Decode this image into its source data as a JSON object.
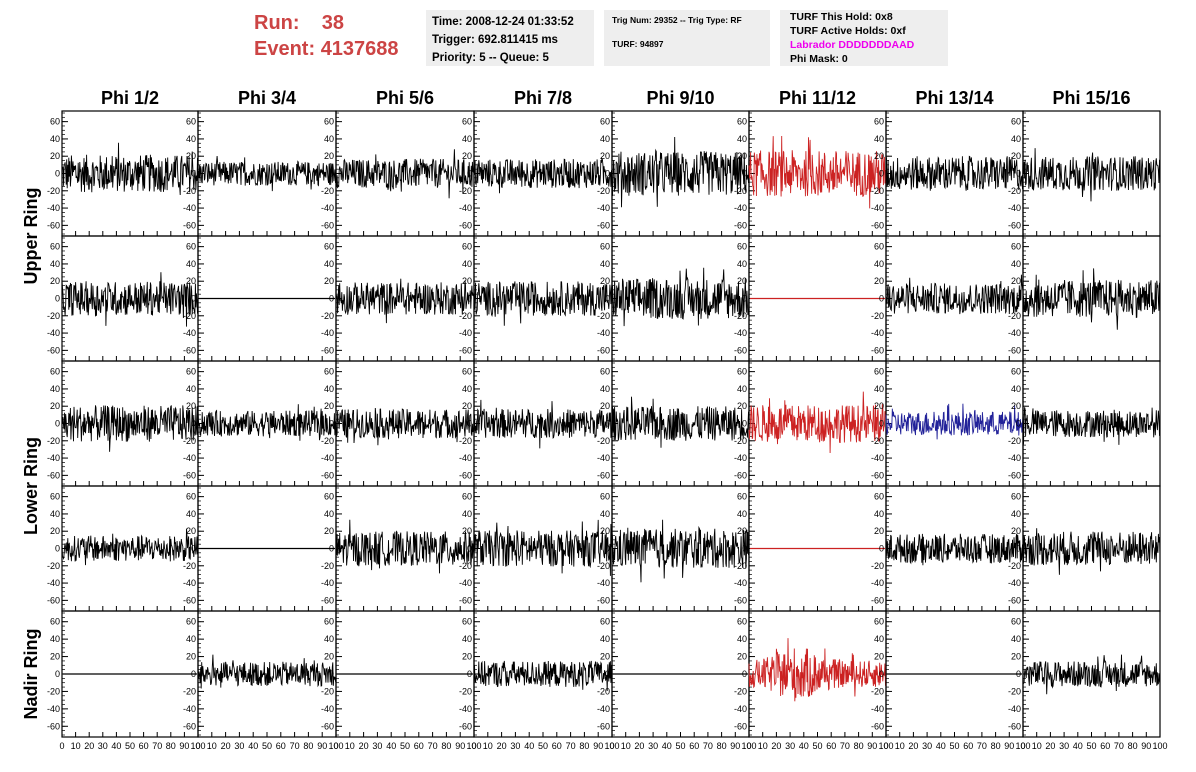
{
  "header": {
    "run_label": "Run:",
    "run_value": "38",
    "event_label": "Event:",
    "event_value": "4137688",
    "time": "Time: 2008-12-24 01:33:52",
    "trigger": "Trigger: 692.811415 ms",
    "priority": "Priority: 5 -- Queue: 5",
    "trig_num": "Trig Num: 29352 -- Trig Type: RF",
    "turf": "TURF: 94897",
    "turf_this_hold": "TURF This Hold: 0x8",
    "turf_active_holds": "TURF Active Holds: 0xf",
    "labrador": "Labrador DDDDDDDAAD",
    "phi_mask": "Phi Mask: 0"
  },
  "colors": {
    "run_text": "#cc4444",
    "labrador_text": "#ee00ee",
    "normal": "#000000",
    "red": "#cc2222",
    "blue": "#222299",
    "info_bg": "#eeeeee"
  },
  "chart_data": {
    "type": "line",
    "columns": [
      "Phi 1/2",
      "Phi 3/4",
      "Phi 5/6",
      "Phi 7/8",
      "Phi 9/10",
      "Phi 11/12",
      "Phi 13/14",
      "Phi 15/16"
    ],
    "ring_labels": [
      "Upper Ring",
      "Lower Ring",
      "Nadir Ring"
    ],
    "y_ticks": [
      60,
      40,
      20,
      0,
      -20,
      -40,
      -60
    ],
    "ylim": [
      -70,
      70
    ],
    "x_tick_labels": [
      "0",
      "10",
      "20",
      "30",
      "40",
      "50",
      "60",
      "70",
      "80",
      "90",
      "100"
    ],
    "xlim": [
      0,
      100
    ],
    "panels": [
      [
        {
          "state": "active",
          "color": "normal",
          "amp": 22
        },
        {
          "state": "active",
          "color": "normal",
          "amp": 14
        },
        {
          "state": "active",
          "color": "normal",
          "amp": 17
        },
        {
          "state": "active",
          "color": "normal",
          "amp": 17
        },
        {
          "state": "active",
          "color": "normal",
          "amp": 26
        },
        {
          "state": "active",
          "color": "red",
          "amp": 27
        },
        {
          "state": "active",
          "color": "normal",
          "amp": 20
        },
        {
          "state": "active",
          "color": "normal",
          "amp": 20
        }
      ],
      [
        {
          "state": "active",
          "color": "normal",
          "amp": 20
        },
        {
          "state": "flat",
          "color": "normal",
          "amp": 0
        },
        {
          "state": "active",
          "color": "normal",
          "amp": 19
        },
        {
          "state": "active",
          "color": "normal",
          "amp": 20
        },
        {
          "state": "active",
          "color": "normal",
          "amp": 24
        },
        {
          "state": "flat",
          "color": "red",
          "amp": 0
        },
        {
          "state": "active",
          "color": "normal",
          "amp": 18
        },
        {
          "state": "active",
          "color": "normal",
          "amp": 22
        }
      ],
      [
        {
          "state": "active",
          "color": "normal",
          "amp": 21
        },
        {
          "state": "active",
          "color": "normal",
          "amp": 15
        },
        {
          "state": "active",
          "color": "normal",
          "amp": 17
        },
        {
          "state": "active",
          "color": "normal",
          "amp": 17
        },
        {
          "state": "active",
          "color": "normal",
          "amp": 20
        },
        {
          "state": "active",
          "color": "red",
          "amp": 22
        },
        {
          "state": "active",
          "color": "blue",
          "amp": 14
        },
        {
          "state": "active",
          "color": "normal",
          "amp": 16
        }
      ],
      [
        {
          "state": "active",
          "color": "normal",
          "amp": 15
        },
        {
          "state": "flat",
          "color": "normal",
          "amp": 0
        },
        {
          "state": "active",
          "color": "normal",
          "amp": 20
        },
        {
          "state": "active",
          "color": "normal",
          "amp": 21
        },
        {
          "state": "active",
          "color": "normal",
          "amp": 23
        },
        {
          "state": "flat",
          "color": "red",
          "amp": 0
        },
        {
          "state": "active",
          "color": "normal",
          "amp": 17
        },
        {
          "state": "active",
          "color": "normal",
          "amp": 20
        }
      ],
      [
        {
          "state": "flat",
          "color": "normal",
          "amp": 0
        },
        {
          "state": "active",
          "color": "normal",
          "amp": 14
        },
        {
          "state": "flat",
          "color": "normal",
          "amp": 0
        },
        {
          "state": "active",
          "color": "normal",
          "amp": 15
        },
        {
          "state": "flat",
          "color": "normal",
          "amp": 0
        },
        {
          "state": "active",
          "color": "red",
          "amp": 28
        },
        {
          "state": "flat",
          "color": "normal",
          "amp": 0
        },
        {
          "state": "active",
          "color": "normal",
          "amp": 15
        }
      ]
    ]
  }
}
